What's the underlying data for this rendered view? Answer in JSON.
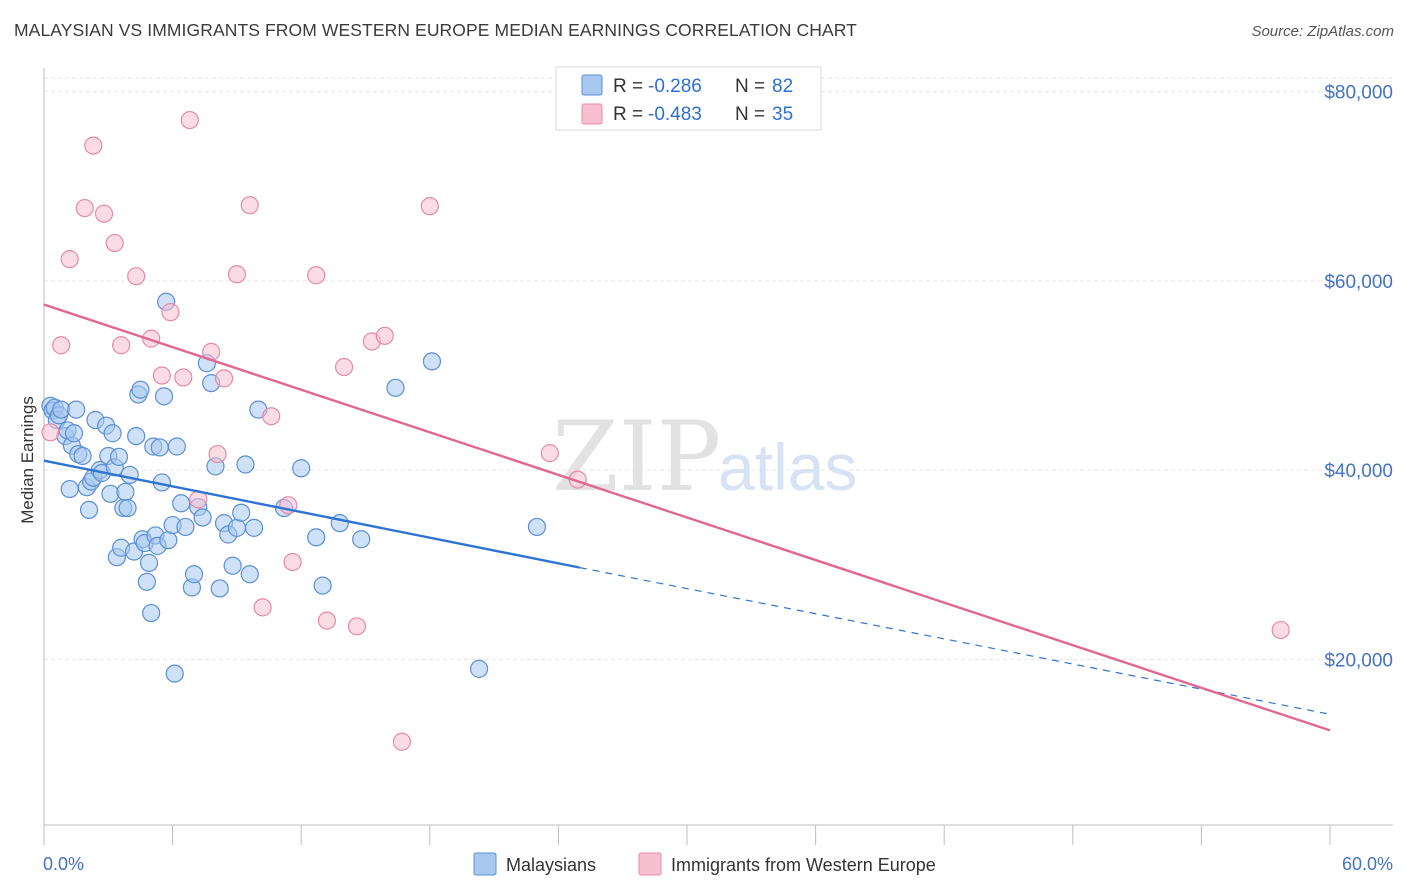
{
  "header": {
    "title": "MALAYSIAN VS IMMIGRANTS FROM WESTERN EUROPE MEDIAN EARNINGS CORRELATION CHART",
    "source": "Source: ZipAtlas.com"
  },
  "watermark": {
    "part1": "ZIP",
    "part2": "atlas"
  },
  "colors": {
    "blue_fill": "#a8c8f0",
    "blue_stroke": "#5b8fd6",
    "blue_line": "#2f74d0",
    "pink_fill": "#f7bfd0",
    "pink_stroke": "#e58aa8",
    "pink_line": "#e0688f",
    "axis_label": "#4472c4",
    "grid": "#e6e6e6"
  },
  "legend": {
    "entries": [
      {
        "r_label": "R =",
        "r_value": "-0.286",
        "n_label": "N =",
        "n_value": "82"
      },
      {
        "r_label": "R =",
        "r_value": "-0.483",
        "n_label": "N =",
        "n_value": "35"
      }
    ]
  },
  "bottom_legend": [
    "Malaysians",
    "Immigrants from Western Europe"
  ],
  "chart_data": {
    "type": "scatter",
    "title": "MALAYSIAN VS IMMIGRANTS FROM WESTERN EUROPE MEDIAN EARNINGS CORRELATION CHART",
    "xlabel": "",
    "ylabel": "Median Earnings",
    "xlim": [
      0,
      60
    ],
    "ylim": [
      2500,
      82500
    ],
    "x_tick_labels": [
      "0.0%",
      "60.0%"
    ],
    "y_ticks": [
      20000,
      40000,
      60000,
      80000
    ],
    "y_tick_labels": [
      "$20,000",
      "$40,000",
      "$60,000",
      "$80,000"
    ],
    "grid": true,
    "legend_position": "top-center",
    "series": [
      {
        "name": "Malaysians",
        "r": -0.286,
        "n": 82,
        "trend": {
          "x": [
            0,
            25
          ],
          "y": [
            41000,
            29700
          ],
          "dashed_to": [
            60,
            14200
          ]
        },
        "points": [
          [
            0.3,
            46800
          ],
          [
            0.4,
            46300
          ],
          [
            0.5,
            46600
          ],
          [
            0.6,
            45300
          ],
          [
            0.7,
            45800
          ],
          [
            0.8,
            46400
          ],
          [
            1.0,
            43600
          ],
          [
            1.1,
            44200
          ],
          [
            1.2,
            38000
          ],
          [
            1.3,
            42600
          ],
          [
            1.4,
            43900
          ],
          [
            1.5,
            46400
          ],
          [
            1.6,
            41700
          ],
          [
            1.8,
            41500
          ],
          [
            2.0,
            38200
          ],
          [
            2.1,
            35800
          ],
          [
            2.2,
            38800
          ],
          [
            2.3,
            39200
          ],
          [
            2.4,
            45300
          ],
          [
            2.6,
            40000
          ],
          [
            2.7,
            39700
          ],
          [
            2.9,
            44700
          ],
          [
            3.0,
            41500
          ],
          [
            3.1,
            37500
          ],
          [
            3.2,
            43900
          ],
          [
            3.3,
            40300
          ],
          [
            3.4,
            30800
          ],
          [
            3.5,
            41400
          ],
          [
            3.6,
            31800
          ],
          [
            3.7,
            36000
          ],
          [
            3.8,
            37700
          ],
          [
            3.9,
            36000
          ],
          [
            4.0,
            39500
          ],
          [
            4.2,
            31400
          ],
          [
            4.3,
            43600
          ],
          [
            4.4,
            48000
          ],
          [
            4.5,
            48500
          ],
          [
            4.6,
            32700
          ],
          [
            4.7,
            32300
          ],
          [
            4.8,
            28200
          ],
          [
            4.9,
            30200
          ],
          [
            5.0,
            24900
          ],
          [
            5.1,
            42500
          ],
          [
            5.2,
            33100
          ],
          [
            5.3,
            32000
          ],
          [
            5.4,
            42400
          ],
          [
            5.5,
            38700
          ],
          [
            5.6,
            47800
          ],
          [
            5.7,
            57800
          ],
          [
            5.8,
            32600
          ],
          [
            6.0,
            34200
          ],
          [
            6.1,
            18500
          ],
          [
            6.2,
            42500
          ],
          [
            6.4,
            36500
          ],
          [
            6.6,
            34000
          ],
          [
            6.9,
            27600
          ],
          [
            7.0,
            29000
          ],
          [
            7.2,
            36100
          ],
          [
            7.4,
            35000
          ],
          [
            7.6,
            51300
          ],
          [
            7.8,
            49200
          ],
          [
            8.0,
            40400
          ],
          [
            8.2,
            27500
          ],
          [
            8.4,
            34400
          ],
          [
            8.6,
            33200
          ],
          [
            8.8,
            29900
          ],
          [
            9.0,
            33900
          ],
          [
            9.2,
            35500
          ],
          [
            9.4,
            40600
          ],
          [
            9.6,
            29000
          ],
          [
            9.8,
            33900
          ],
          [
            10.0,
            46400
          ],
          [
            11.2,
            36000
          ],
          [
            12.0,
            40200
          ],
          [
            12.7,
            32900
          ],
          [
            13.0,
            27800
          ],
          [
            13.8,
            34400
          ],
          [
            14.8,
            32700
          ],
          [
            16.4,
            48700
          ],
          [
            18.1,
            51500
          ],
          [
            20.3,
            19000
          ],
          [
            23.0,
            34000
          ]
        ],
        "point_radius": 8.5
      },
      {
        "name": "Immigrants from Western Europe",
        "r": -0.483,
        "n": 35,
        "trend": {
          "x": [
            0,
            60
          ],
          "y": [
            57500,
            12500
          ]
        },
        "points": [
          [
            0.3,
            44000
          ],
          [
            0.8,
            53200
          ],
          [
            1.2,
            62300
          ],
          [
            1.9,
            67700
          ],
          [
            2.3,
            74300
          ],
          [
            2.8,
            67100
          ],
          [
            3.3,
            64000
          ],
          [
            3.6,
            53200
          ],
          [
            4.3,
            60500
          ],
          [
            5.0,
            53900
          ],
          [
            5.5,
            50000
          ],
          [
            5.9,
            56700
          ],
          [
            6.5,
            49800
          ],
          [
            6.8,
            77000
          ],
          [
            7.2,
            36900
          ],
          [
            7.8,
            52500
          ],
          [
            8.1,
            41700
          ],
          [
            8.4,
            49700
          ],
          [
            9.0,
            60700
          ],
          [
            9.6,
            68000
          ],
          [
            10.2,
            25500
          ],
          [
            10.6,
            45700
          ],
          [
            11.4,
            36300
          ],
          [
            11.6,
            30300
          ],
          [
            12.7,
            60600
          ],
          [
            13.2,
            24100
          ],
          [
            14.0,
            50900
          ],
          [
            14.6,
            23500
          ],
          [
            15.3,
            53600
          ],
          [
            15.9,
            54200
          ],
          [
            16.7,
            11300
          ],
          [
            18.0,
            67900
          ],
          [
            23.6,
            41800
          ],
          [
            24.9,
            39000
          ],
          [
            57.7,
            23100
          ]
        ],
        "point_radius": 8.5
      }
    ]
  }
}
